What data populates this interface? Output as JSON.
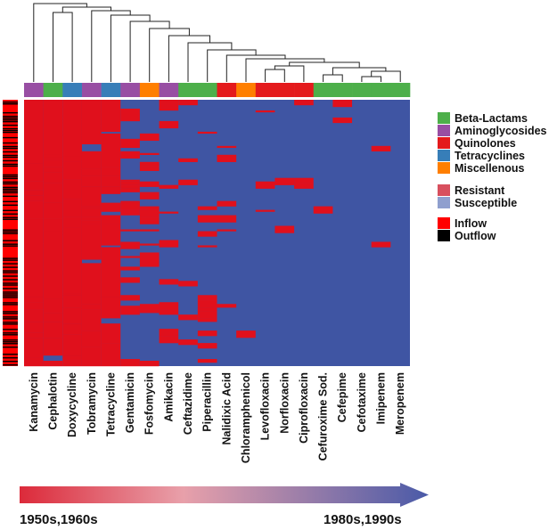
{
  "chart_data": {
    "type": "heatmap",
    "title": "",
    "columns": [
      "Kanamycin",
      "Cephalotin",
      "Doxycycline",
      "Tobramycin",
      "Tetracycline",
      "Gentamicin",
      "Fosfomycin",
      "Amikacin",
      "Ceftazidime",
      "Piperacillin",
      "Nalidixic Acid",
      "Chloramphenicol",
      "Levofloxacin",
      "Norfloxacin",
      "Ciprofloxacin",
      "Cefuroxime Sod.",
      "Cefepime",
      "Cefotaxime",
      "Imipenem",
      "Meropenem"
    ],
    "column_classes": [
      "Aminoglycosides",
      "Beta-Lactams",
      "Tetracyclines",
      "Aminoglycosides",
      "Tetracyclines",
      "Aminoglycosides",
      "Miscellenous",
      "Aminoglycosides",
      "Beta-Lactams",
      "Beta-Lactams",
      "Quinolones",
      "Miscellenous",
      "Quinolones",
      "Quinolones",
      "Quinolones",
      "Beta-Lactams",
      "Beta-Lactams",
      "Beta-Lactams",
      "Beta-Lactams",
      "Beta-Lactams"
    ],
    "resistance_fraction": [
      0.98,
      0.97,
      0.93,
      0.82,
      0.74,
      0.5,
      0.36,
      0.3,
      0.2,
      0.22,
      0.16,
      0.12,
      0.08,
      0.08,
      0.08,
      0.05,
      0.04,
      0.04,
      0.03,
      0.03
    ],
    "rows_approx": 150,
    "row_annotation": "Inflow / Outflow per isolate"
  },
  "legend": {
    "classes": [
      {
        "label": "Beta-Lactams",
        "color": "#4daf4a"
      },
      {
        "label": "Aminoglycosides",
        "color": "#984ea3"
      },
      {
        "label": "Quinolones",
        "color": "#e41a1c"
      },
      {
        "label": "Tetracyclines",
        "color": "#377eb8"
      },
      {
        "label": "Miscellenous",
        "color": "#ff7f00"
      }
    ],
    "states": [
      {
        "label": "Resistant",
        "color": "#d8505e"
      },
      {
        "label": "Susceptible",
        "color": "#8f9fce"
      }
    ],
    "flow": [
      {
        "label": "Inflow",
        "color": "#ff0000"
      },
      {
        "label": "Outflow",
        "color": "#000000"
      }
    ]
  },
  "colors": {
    "resistant": "#e0101c",
    "susceptible": "#3f55a3",
    "arrow_start": "#dc2a3a",
    "arrow_mid": "#e8a0aa",
    "arrow_end": "#4a5aa8"
  },
  "timeline": {
    "start_label": "1950s,1960s",
    "end_label": "1980s,1990s"
  }
}
